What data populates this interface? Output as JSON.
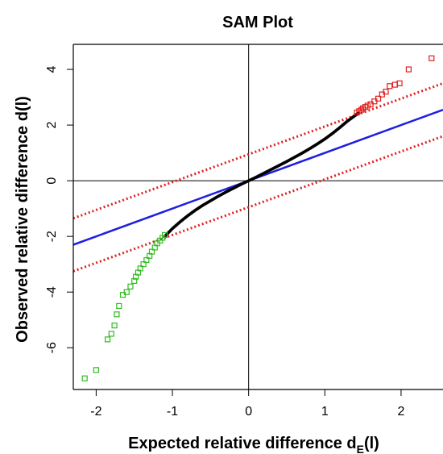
{
  "chart_data": {
    "type": "scatter",
    "title": "SAM Plot",
    "xlabel": {
      "main": "Expected relative difference d",
      "sub": "E",
      "suffix": "(l)"
    },
    "ylabel": "Observed relative difference d(l)",
    "xlim": [
      -2.3,
      2.55
    ],
    "ylim": [
      -7.5,
      4.9
    ],
    "x_ticks": [
      -2,
      -1,
      0,
      1,
      2
    ],
    "x_tick_labels": [
      "-2",
      "-1",
      "0",
      "1",
      "2"
    ],
    "y_ticks": [
      -6,
      -4,
      -2,
      0,
      2,
      4
    ],
    "y_tick_labels": [
      "-6",
      "-4",
      "-2",
      "0",
      "2",
      "4"
    ],
    "reference_lines": [
      {
        "kind": "identity",
        "slope": 1,
        "intercept": 0,
        "color": "#1f1fe0",
        "style": "solid"
      },
      {
        "kind": "upper-threshold",
        "slope": 1,
        "intercept": 0.95,
        "color": "#e02020",
        "style": "dotted"
      },
      {
        "kind": "lower-threshold",
        "slope": 1,
        "intercept": -0.95,
        "color": "#e02020",
        "style": "dotted"
      }
    ],
    "series": [
      {
        "color": "#000000",
        "marker": "dense-points",
        "points": [
          [
            -1.1,
            -2.0
          ],
          [
            -1.0,
            -1.72
          ],
          [
            -0.9,
            -1.48
          ],
          [
            -0.8,
            -1.26
          ],
          [
            -0.7,
            -1.06
          ],
          [
            -0.6,
            -0.88
          ],
          [
            -0.5,
            -0.72
          ],
          [
            -0.4,
            -0.56
          ],
          [
            -0.3,
            -0.41
          ],
          [
            -0.2,
            -0.27
          ],
          [
            -0.1,
            -0.13
          ],
          [
            0.0,
            0.0
          ],
          [
            0.1,
            0.13
          ],
          [
            0.2,
            0.27
          ],
          [
            0.3,
            0.41
          ],
          [
            0.4,
            0.55
          ],
          [
            0.5,
            0.69
          ],
          [
            0.6,
            0.84
          ],
          [
            0.7,
            0.99
          ],
          [
            0.8,
            1.15
          ],
          [
            0.9,
            1.32
          ],
          [
            1.0,
            1.5
          ],
          [
            1.1,
            1.7
          ],
          [
            1.2,
            1.92
          ],
          [
            1.3,
            2.15
          ],
          [
            1.4,
            2.35
          ],
          [
            1.45,
            2.45
          ]
        ]
      },
      {
        "color": "#e02020",
        "marker": "open-square",
        "points": [
          [
            1.42,
            2.45
          ],
          [
            1.45,
            2.5
          ],
          [
            1.48,
            2.55
          ],
          [
            1.5,
            2.6
          ],
          [
            1.53,
            2.65
          ],
          [
            1.56,
            2.7
          ],
          [
            1.6,
            2.75
          ],
          [
            1.65,
            2.85
          ],
          [
            1.7,
            2.95
          ],
          [
            1.75,
            3.1
          ],
          [
            1.8,
            3.2
          ],
          [
            1.85,
            3.4
          ],
          [
            1.92,
            3.45
          ],
          [
            1.98,
            3.5
          ],
          [
            2.1,
            4.0
          ],
          [
            2.4,
            4.4
          ]
        ]
      },
      {
        "color": "#33bb22",
        "marker": "open-square",
        "points": [
          [
            -1.1,
            -1.95
          ],
          [
            -1.13,
            -2.05
          ],
          [
            -1.16,
            -2.15
          ],
          [
            -1.2,
            -2.25
          ],
          [
            -1.23,
            -2.4
          ],
          [
            -1.27,
            -2.55
          ],
          [
            -1.3,
            -2.7
          ],
          [
            -1.34,
            -2.85
          ],
          [
            -1.38,
            -3.0
          ],
          [
            -1.42,
            -3.15
          ],
          [
            -1.45,
            -3.3
          ],
          [
            -1.48,
            -3.45
          ],
          [
            -1.5,
            -3.6
          ],
          [
            -1.55,
            -3.8
          ],
          [
            -1.6,
            -4.0
          ],
          [
            -1.65,
            -4.1
          ],
          [
            -1.7,
            -4.5
          ],
          [
            -1.73,
            -4.8
          ],
          [
            -1.76,
            -5.2
          ],
          [
            -1.8,
            -5.5
          ],
          [
            -1.85,
            -5.7
          ],
          [
            -2.0,
            -6.8
          ],
          [
            -2.15,
            -7.1
          ]
        ]
      }
    ]
  }
}
